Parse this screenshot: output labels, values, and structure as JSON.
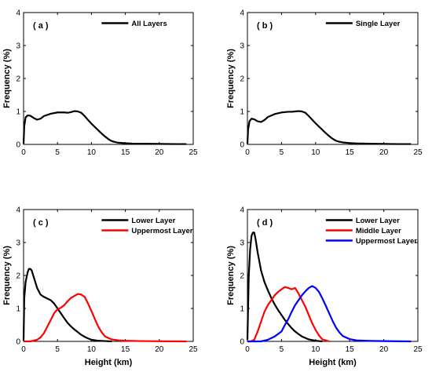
{
  "figure": {
    "ylabel": "Frequency (%)",
    "xlabel": "Height (km)"
  },
  "chart_data": [
    {
      "type": "line",
      "panel_label": "( a )",
      "ylabel": "Frequency (%)",
      "xlabel": "",
      "xlim": [
        0,
        25
      ],
      "ylim": [
        0,
        4
      ],
      "xticks": [
        0,
        5,
        10,
        15,
        20,
        25
      ],
      "yticks": [
        0,
        1,
        2,
        3,
        4
      ],
      "legend_position": "top-right",
      "series": [
        {
          "name": "All Layers",
          "color": "#000000",
          "x": [
            0,
            0.1,
            0.3,
            0.6,
            1.0,
            1.5,
            2.0,
            2.5,
            3,
            4,
            5,
            6,
            6.5,
            7,
            7.5,
            8,
            8.5,
            9,
            9.5,
            10,
            10.5,
            11,
            11.5,
            12,
            12.5,
            13,
            13.5,
            14,
            15,
            16,
            18,
            20,
            22,
            24
          ],
          "y": [
            0.02,
            0.55,
            0.82,
            0.88,
            0.87,
            0.8,
            0.75,
            0.78,
            0.86,
            0.93,
            0.97,
            0.97,
            0.96,
            0.98,
            1.01,
            1.0,
            0.96,
            0.86,
            0.74,
            0.63,
            0.53,
            0.43,
            0.33,
            0.24,
            0.16,
            0.1,
            0.07,
            0.05,
            0.035,
            0.025,
            0.02,
            0.015,
            0.01,
            0.01
          ]
        }
      ]
    },
    {
      "type": "line",
      "panel_label": "( b )",
      "ylabel": "Frequency (%)",
      "xlabel": "",
      "xlim": [
        0,
        25
      ],
      "ylim": [
        0,
        4
      ],
      "xticks": [
        0,
        5,
        10,
        15,
        20,
        25
      ],
      "yticks": [
        0,
        1,
        2,
        3,
        4
      ],
      "legend_position": "top-right",
      "series": [
        {
          "name": "Single Layer",
          "color": "#000000",
          "x": [
            0,
            0.1,
            0.3,
            0.6,
            1.0,
            1.5,
            2.0,
            2.5,
            3,
            4,
            5,
            6,
            6.5,
            7,
            7.5,
            8,
            8.5,
            9,
            9.5,
            10,
            10.5,
            11,
            11.5,
            12,
            12.5,
            13,
            13.5,
            14,
            15,
            16,
            18,
            20,
            22,
            24
          ],
          "y": [
            0.02,
            0.45,
            0.7,
            0.78,
            0.76,
            0.7,
            0.68,
            0.74,
            0.83,
            0.92,
            0.97,
            0.99,
            0.99,
            1.0,
            1.01,
            1.0,
            0.96,
            0.86,
            0.75,
            0.64,
            0.54,
            0.44,
            0.34,
            0.25,
            0.17,
            0.11,
            0.08,
            0.06,
            0.04,
            0.03,
            0.02,
            0.015,
            0.01,
            0.01
          ]
        }
      ]
    },
    {
      "type": "line",
      "panel_label": "( c )",
      "ylabel": "Frequency (%)",
      "xlabel": "Height (km)",
      "xlim": [
        0,
        25
      ],
      "ylim": [
        0,
        4
      ],
      "xticks": [
        0,
        5,
        10,
        15,
        20,
        25
      ],
      "yticks": [
        0,
        1,
        2,
        3,
        4
      ],
      "legend_position": "top-right",
      "series": [
        {
          "name": "Lower Layer",
          "color": "#000000",
          "x": [
            0,
            0.1,
            0.3,
            0.6,
            0.8,
            1.0,
            1.2,
            1.5,
            2.0,
            2.5,
            3,
            3.5,
            4,
            4.5,
            5,
            5.5,
            6,
            6.5,
            7,
            7.5,
            8,
            8.5,
            9,
            9.5,
            10,
            11,
            12,
            13
          ],
          "y": [
            0.02,
            1.3,
            1.8,
            2.1,
            2.2,
            2.2,
            2.15,
            1.95,
            1.62,
            1.42,
            1.35,
            1.3,
            1.25,
            1.15,
            1.0,
            0.85,
            0.7,
            0.56,
            0.45,
            0.36,
            0.28,
            0.2,
            0.14,
            0.09,
            0.05,
            0.02,
            0.01,
            0.0
          ]
        },
        {
          "name": "Uppermost Layer",
          "color": "#ff0000",
          "x": [
            0,
            1,
            2,
            2.5,
            3,
            3.5,
            4,
            4.5,
            5,
            5.5,
            6,
            6.5,
            7,
            7.5,
            8,
            8.5,
            9,
            9.5,
            10,
            10.5,
            11,
            11.5,
            12,
            13,
            14,
            15,
            17,
            20,
            24
          ],
          "y": [
            0.0,
            0.0,
            0.05,
            0.12,
            0.25,
            0.45,
            0.65,
            0.85,
            0.98,
            1.02,
            1.1,
            1.22,
            1.32,
            1.38,
            1.44,
            1.42,
            1.35,
            1.15,
            0.92,
            0.68,
            0.45,
            0.28,
            0.15,
            0.06,
            0.03,
            0.02,
            0.01,
            0.005,
            0.0
          ]
        }
      ]
    },
    {
      "type": "line",
      "panel_label": "( d )",
      "ylabel": "Frequency (%)",
      "xlabel": "Height (km)",
      "xlim": [
        0,
        25
      ],
      "ylim": [
        0,
        4
      ],
      "xticks": [
        0,
        5,
        10,
        15,
        20,
        25
      ],
      "yticks": [
        0,
        1,
        2,
        3,
        4
      ],
      "legend_position": "top-right",
      "series": [
        {
          "name": "Lower Layer",
          "color": "#000000",
          "x": [
            0,
            0.2,
            0.4,
            0.6,
            0.8,
            1.0,
            1.2,
            1.5,
            2.0,
            2.5,
            3,
            3.5,
            4,
            4.5,
            5,
            5.5,
            6,
            6.5,
            7,
            7.5,
            8,
            9,
            10,
            11
          ],
          "y": [
            0.05,
            2.0,
            2.8,
            3.2,
            3.3,
            3.3,
            3.1,
            2.7,
            2.15,
            1.8,
            1.55,
            1.32,
            1.12,
            0.95,
            0.8,
            0.65,
            0.52,
            0.4,
            0.3,
            0.22,
            0.15,
            0.06,
            0.02,
            0.0
          ]
        },
        {
          "name": "Middle Layer",
          "color": "#ff0000",
          "x": [
            0,
            0.5,
            1.0,
            1.5,
            2.0,
            2.5,
            3.0,
            3.5,
            4.0,
            4.5,
            5.0,
            5.5,
            6.0,
            6.5,
            7.0,
            7.5,
            8.0,
            8.5,
            9.0,
            9.5,
            10.0,
            10.5,
            11.0,
            12.0
          ],
          "y": [
            0.0,
            0.0,
            0.05,
            0.3,
            0.6,
            0.9,
            1.1,
            1.25,
            1.4,
            1.5,
            1.58,
            1.65,
            1.62,
            1.58,
            1.62,
            1.45,
            1.25,
            1.05,
            0.8,
            0.55,
            0.35,
            0.18,
            0.06,
            0.0
          ]
        },
        {
          "name": "Uppermost Layer",
          "color": "#0000ff",
          "x": [
            0,
            2,
            3,
            4,
            5,
            5.5,
            6,
            6.5,
            7,
            7.5,
            8,
            8.5,
            9,
            9.5,
            10,
            10.5,
            11,
            11.5,
            12,
            12.5,
            13,
            13.5,
            14,
            15,
            16,
            18,
            20,
            24
          ],
          "y": [
            0.0,
            0.0,
            0.05,
            0.15,
            0.3,
            0.5,
            0.68,
            0.9,
            1.1,
            1.25,
            1.4,
            1.52,
            1.62,
            1.68,
            1.62,
            1.5,
            1.3,
            1.08,
            0.85,
            0.62,
            0.42,
            0.27,
            0.16,
            0.07,
            0.03,
            0.015,
            0.008,
            0.0
          ]
        }
      ]
    }
  ]
}
